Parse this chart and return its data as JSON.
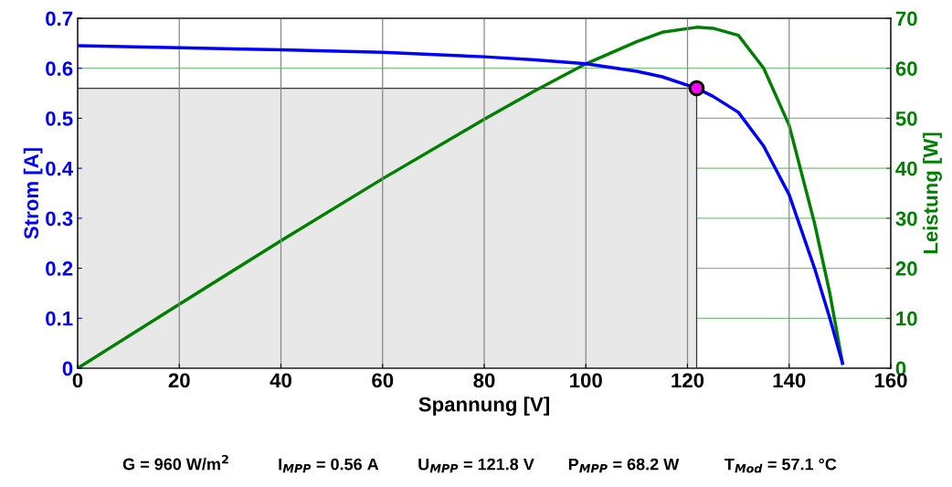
{
  "chart_data": {
    "type": "line",
    "xlabel": "Spannung [V]",
    "ylabel": "Strom [A]",
    "y2label": "Leistung [W]",
    "xlim": [
      0,
      160
    ],
    "xticks": [
      0,
      20,
      40,
      60,
      80,
      100,
      120,
      140,
      160
    ],
    "ylim": [
      0,
      0.7
    ],
    "yticks": [
      0,
      0.1,
      0.2,
      0.3,
      0.4,
      0.5,
      0.6,
      0.7
    ],
    "y2lim": [
      0,
      70
    ],
    "y2ticks": [
      0,
      10,
      20,
      30,
      40,
      50,
      60,
      70
    ],
    "grid": true,
    "line_style": "solid",
    "series": [
      {
        "type": "area",
        "color": "#e8e8e8",
        "x": [
          0,
          121.8
        ],
        "values": [
          0.56,
          0.56
        ]
      },
      {
        "marker": "none",
        "color": "#0000ff",
        "x": [
          0,
          20,
          40,
          60,
          80,
          90,
          100,
          110,
          115,
          121.8,
          125,
          130,
          135,
          140,
          145,
          148,
          150.5
        ],
        "values": [
          0.645,
          0.641,
          0.637,
          0.632,
          0.623,
          0.617,
          0.609,
          0.594,
          0.583,
          0.56,
          0.544,
          0.512,
          0.444,
          0.347,
          0.2,
          0.1,
          0.01
        ]
      },
      {
        "marker": "none",
        "axis": "y2",
        "color": "#008000",
        "x": [
          0,
          20,
          40,
          60,
          80,
          90,
          100,
          110,
          115,
          121.8,
          125,
          130,
          135,
          140,
          145,
          148,
          150.5
        ],
        "values": [
          0,
          12.8,
          25.5,
          37.9,
          49.8,
          55.5,
          60.9,
          65.3,
          67.2,
          68.2,
          68.0,
          66.6,
          60.0,
          48.6,
          29.0,
          15.0,
          1.0
        ]
      },
      {
        "type": "scatter",
        "marker": "circle",
        "color": "#ff00ff",
        "x": [
          121.8
        ],
        "values": [
          0.56
        ]
      }
    ],
    "annotations": [
      "G = 960 W/m$^{2}$",
      "I$_{MPP}$ = 0.56 A",
      "U$_{MPP}$ = 121.8 V",
      "P$_{MPP}$ = 68.2 W",
      "T$_{Mod}$ = 57.1 °C"
    ]
  }
}
